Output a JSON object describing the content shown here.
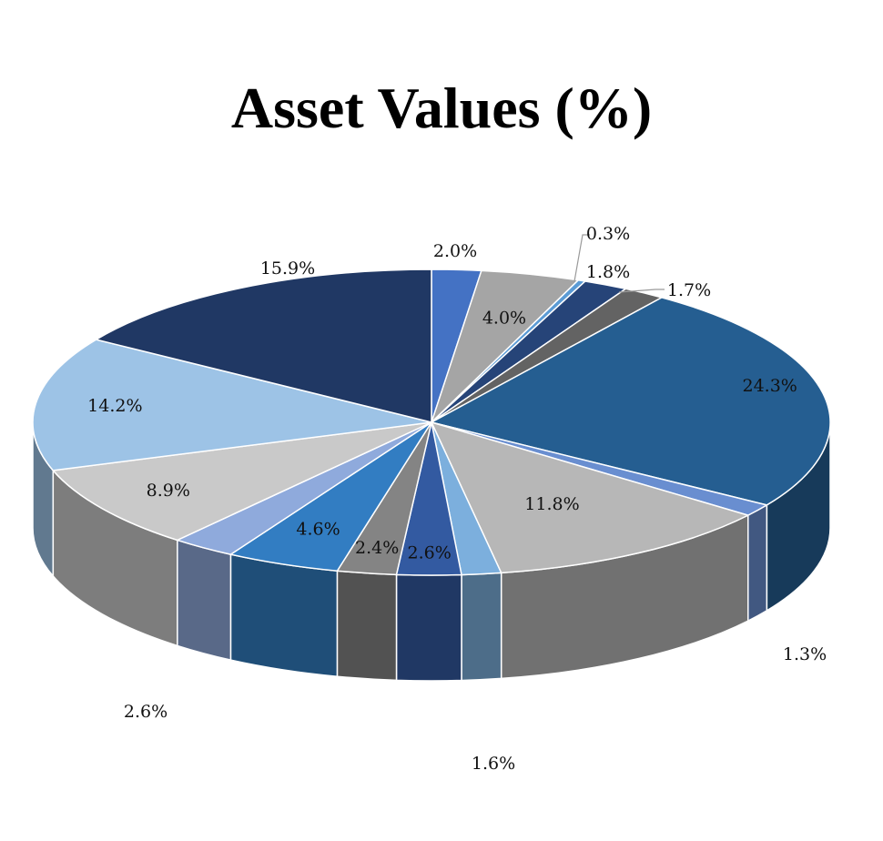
{
  "chart_data": {
    "type": "pie",
    "title": "Asset Values (%)",
    "slices": [
      {
        "label": "2.0%",
        "value": 2.0,
        "color": "#4472C4"
      },
      {
        "label": "4.0%",
        "value": 4.0,
        "color": "#A5A5A5"
      },
      {
        "label": "0.3%",
        "value": 0.3,
        "color": "#5B9BD5"
      },
      {
        "label": "1.8%",
        "value": 1.8,
        "color": "#264478"
      },
      {
        "label": "1.7%",
        "value": 1.7,
        "color": "#636363"
      },
      {
        "label": "24.3%",
        "value": 24.3,
        "color": "#255E91"
      },
      {
        "label": "1.3%",
        "value": 1.3,
        "color": "#698ED0"
      },
      {
        "label": "11.8%",
        "value": 11.8,
        "color": "#B7B7B7"
      },
      {
        "label": "1.6%",
        "value": 1.6,
        "color": "#7CAFDD"
      },
      {
        "label": "2.6%",
        "value": 2.6,
        "color": "#335AA1"
      },
      {
        "label": "2.4%",
        "value": 2.4,
        "color": "#848484"
      },
      {
        "label": "4.6%",
        "value": 4.6,
        "color": "#327DC2"
      },
      {
        "label": "2.6%",
        "value": 2.6,
        "color": "#8FAADC"
      },
      {
        "label": "8.9%",
        "value": 8.9,
        "color": "#C9C9C9"
      },
      {
        "label": "14.2%",
        "value": 14.2,
        "color": "#9DC3E6"
      },
      {
        "label": "15.9%",
        "value": 15.9,
        "color": "#203864"
      }
    ]
  }
}
